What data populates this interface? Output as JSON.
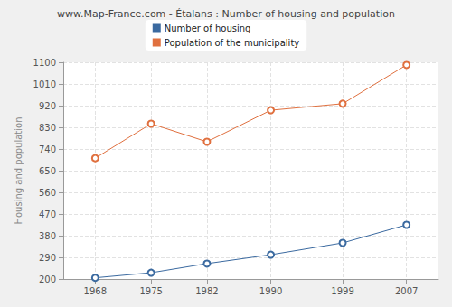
{
  "chart_data": {
    "type": "line",
    "title": "www.Map-France.com - Étalans : Number of housing and population",
    "ylabel": "Housing and population",
    "x": [
      1968,
      1975,
      1982,
      1990,
      1999,
      2007
    ],
    "series": [
      {
        "name": "Number of housing",
        "color": "#3b6aa0",
        "values": [
          205,
          226,
          264,
          301,
          350,
          425
        ]
      },
      {
        "name": "Population of the municipality",
        "color": "#e0703f",
        "values": [
          702,
          845,
          770,
          901,
          928,
          1089
        ]
      }
    ],
    "xlim": [
      1964,
      2011
    ],
    "xticks": [
      1968,
      1975,
      1982,
      1990,
      1999,
      2007
    ],
    "ylim": [
      200,
      1100
    ],
    "yticks": [
      200,
      290,
      380,
      470,
      560,
      650,
      740,
      830,
      920,
      1010,
      1100
    ],
    "grid": true,
    "legend": "top",
    "marker": "circle"
  }
}
